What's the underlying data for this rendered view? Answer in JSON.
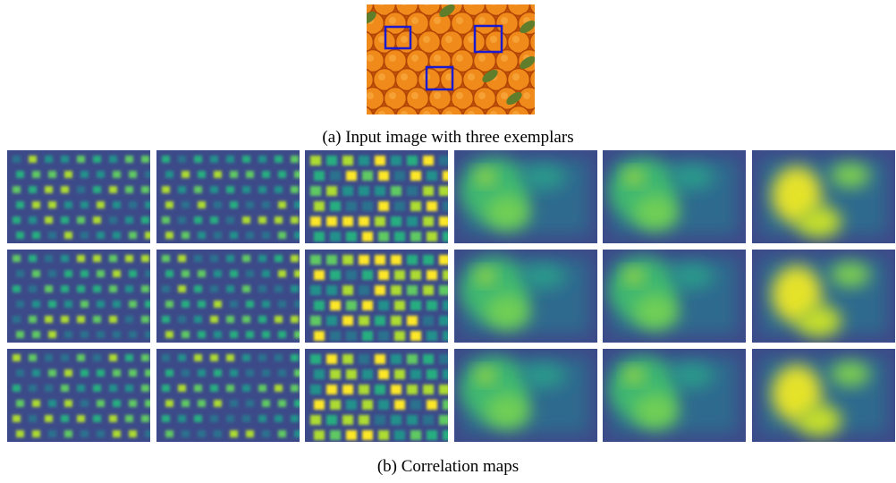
{
  "figure": {
    "caption_a": "(a) Input image with three exemplars",
    "caption_b": "(b) Correlation maps"
  }
}
